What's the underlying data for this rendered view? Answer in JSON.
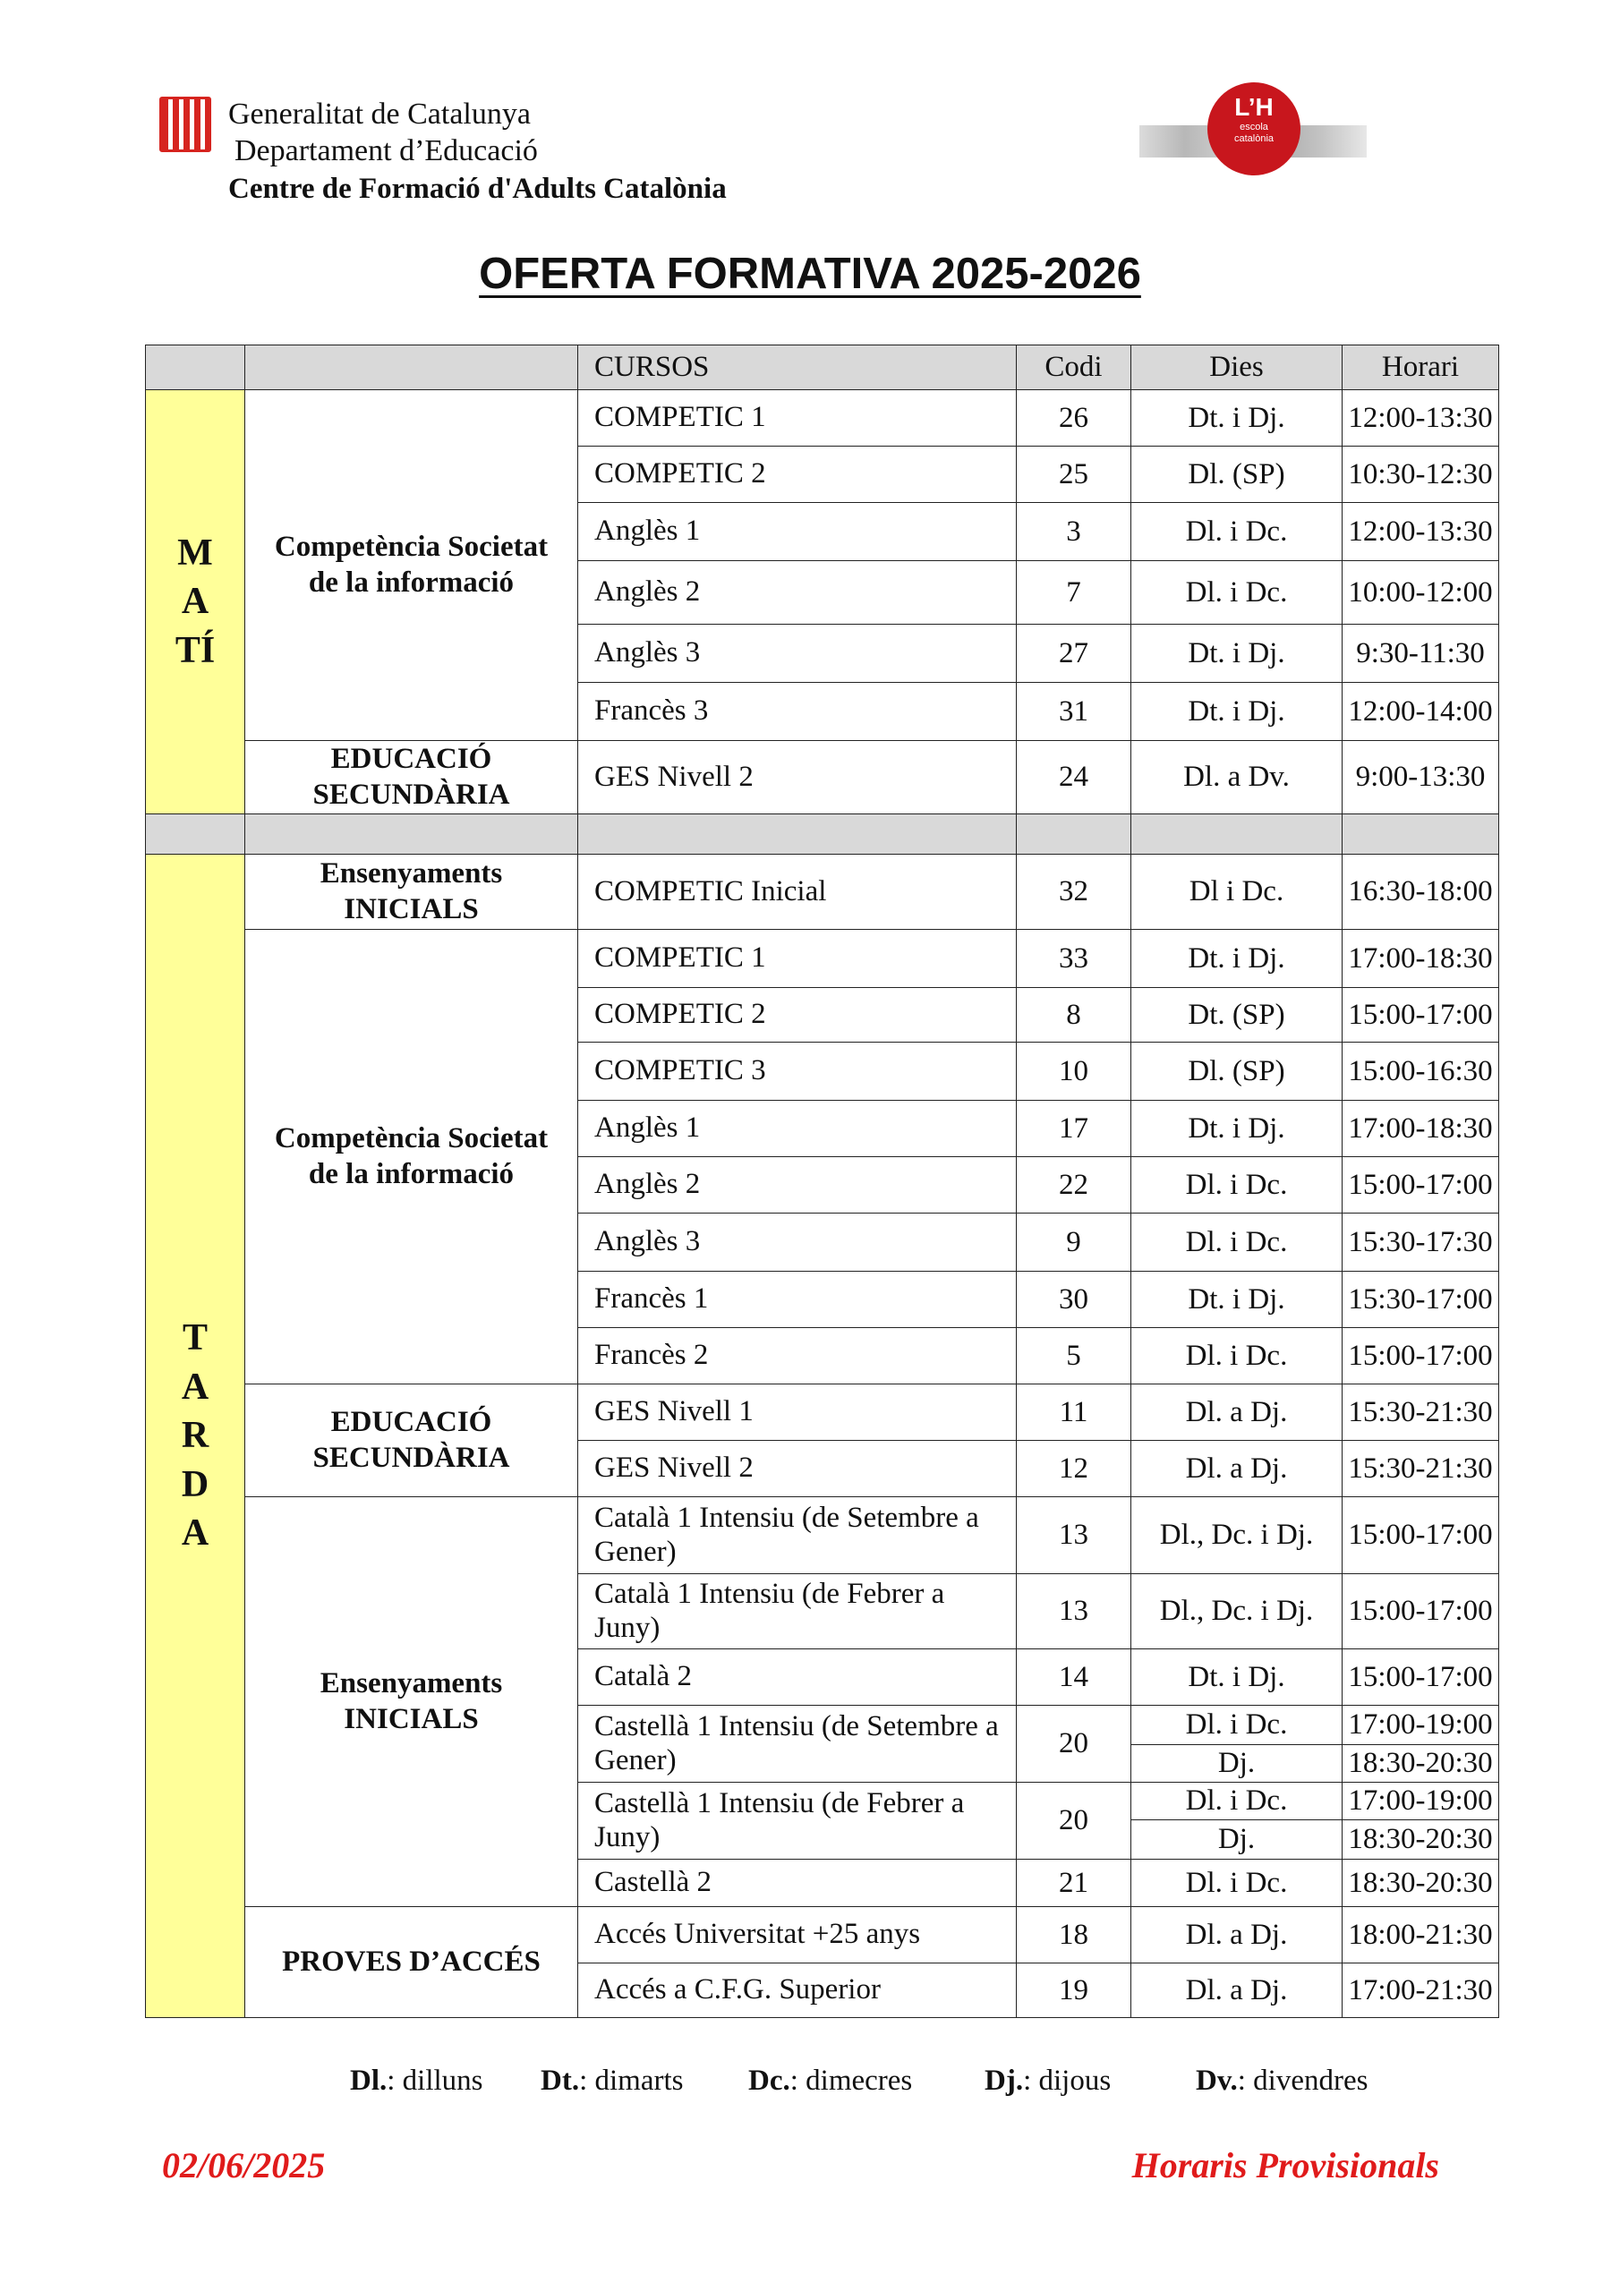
{
  "header": {
    "line1": "Generalitat de Catalunya",
    "line2": "Departament d’Educació",
    "line3": "Centre de Formació d'Adults Catalònia",
    "logo_right": {
      "big": "L’H",
      "small1": "escola",
      "small2": "catalònia"
    }
  },
  "title": "OFERTA FORMATIVA 2025-2026",
  "table": {
    "headers": [
      "",
      "",
      "CURSOS",
      "Codi",
      "Dies",
      "Horari"
    ],
    "sections": [
      {
        "label": "MATÍ",
        "groups": [
          {
            "name": "Competència Societat de la informació",
            "courses": [
              {
                "name": "COMPETIC 1",
                "codi": "26",
                "slots": [
                  {
                    "dies": "Dt. i Dj.",
                    "horari": "12:00-13:30"
                  }
                ]
              },
              {
                "name": "COMPETIC 2",
                "codi": "25",
                "slots": [
                  {
                    "dies": "Dl. (SP)",
                    "horari": "10:30-12:30"
                  }
                ]
              },
              {
                "name": "Anglès 1",
                "codi": "3",
                "slots": [
                  {
                    "dies": "Dl. i Dc.",
                    "horari": "12:00-13:30"
                  }
                ]
              },
              {
                "name": "Anglès 2",
                "codi": "7",
                "slots": [
                  {
                    "dies": "Dl. i Dc.",
                    "horari": "10:00-12:00"
                  }
                ]
              },
              {
                "name": "Anglès 3",
                "codi": "27",
                "slots": [
                  {
                    "dies": "Dt. i Dj.",
                    "horari": "9:30-11:30"
                  }
                ]
              },
              {
                "name": "Francès 3",
                "codi": "31",
                "slots": [
                  {
                    "dies": "Dt. i Dj.",
                    "horari": "12:00-14:00"
                  }
                ]
              }
            ]
          },
          {
            "name": "EDUCACIÓ SECUNDÀRIA",
            "courses": [
              {
                "name": "GES Nivell 2",
                "codi": "24",
                "slots": [
                  {
                    "dies": "Dl. a Dv.",
                    "horari": "9:00-13:30"
                  }
                ]
              }
            ]
          }
        ]
      },
      {
        "label": "TARDA",
        "groups": [
          {
            "name": "Ensenyaments INICIALS",
            "courses": [
              {
                "name": "COMPETIC Inicial",
                "codi": "32",
                "slots": [
                  {
                    "dies": "Dl i Dc.",
                    "horari": "16:30-18:00"
                  }
                ]
              }
            ]
          },
          {
            "name": "Competència Societat de la informació",
            "courses": [
              {
                "name": "COMPETIC 1",
                "codi": "33",
                "slots": [
                  {
                    "dies": "Dt. i Dj.",
                    "horari": "17:00-18:30"
                  }
                ]
              },
              {
                "name": "COMPETIC 2",
                "codi": "8",
                "slots": [
                  {
                    "dies": "Dt. (SP)",
                    "horari": "15:00-17:00"
                  }
                ]
              },
              {
                "name": "COMPETIC 3",
                "codi": "10",
                "slots": [
                  {
                    "dies": "Dl. (SP)",
                    "horari": "15:00-16:30"
                  }
                ]
              },
              {
                "name": "Anglès 1",
                "codi": "17",
                "slots": [
                  {
                    "dies": "Dt. i Dj.",
                    "horari": "17:00-18:30"
                  }
                ]
              },
              {
                "name": "Anglès 2",
                "codi": "22",
                "slots": [
                  {
                    "dies": "Dl. i Dc.",
                    "horari": "15:00-17:00"
                  }
                ]
              },
              {
                "name": "Anglès 3",
                "codi": "9",
                "slots": [
                  {
                    "dies": "Dl. i Dc.",
                    "horari": "15:30-17:30"
                  }
                ]
              },
              {
                "name": "Francès 1",
                "codi": "30",
                "slots": [
                  {
                    "dies": "Dt. i Dj.",
                    "horari": "15:30-17:00"
                  }
                ]
              },
              {
                "name": "Francès 2",
                "codi": "5",
                "slots": [
                  {
                    "dies": "Dl. i Dc.",
                    "horari": "15:00-17:00"
                  }
                ]
              }
            ]
          },
          {
            "name": "EDUCACIÓ SECUNDÀRIA",
            "courses": [
              {
                "name": "GES Nivell  1",
                "codi": "11",
                "slots": [
                  {
                    "dies": "Dl. a Dj.",
                    "horari": "15:30-21:30"
                  }
                ]
              },
              {
                "name": "GES Nivell 2",
                "codi": "12",
                "slots": [
                  {
                    "dies": "Dl. a Dj.",
                    "horari": "15:30-21:30"
                  }
                ]
              }
            ]
          },
          {
            "name": "Ensenyaments INICIALS",
            "courses": [
              {
                "name": "Català 1 Intensiu (de Setembre a Gener)",
                "codi": "13",
                "slots": [
                  {
                    "dies": "Dl., Dc. i Dj.",
                    "horari": "15:00-17:00"
                  }
                ]
              },
              {
                "name": "Català 1 Intensiu (de Febrer a Juny)",
                "codi": "13",
                "slots": [
                  {
                    "dies": "Dl., Dc. i Dj.",
                    "horari": "15:00-17:00"
                  }
                ]
              },
              {
                "name": "Català 2",
                "codi": "14",
                "slots": [
                  {
                    "dies": "Dt. i Dj.",
                    "horari": "15:00-17:00"
                  }
                ]
              },
              {
                "name": "Castellà 1 Intensiu (de Setembre a Gener)",
                "codi": "20",
                "slots": [
                  {
                    "dies": "Dl. i Dc.",
                    "horari": "17:00-19:00"
                  },
                  {
                    "dies": "Dj.",
                    "horari": "18:30-20:30"
                  }
                ]
              },
              {
                "name": "Castellà 1 Intensiu (de Febrer a Juny)",
                "codi": "20",
                "slots": [
                  {
                    "dies": "Dl. i Dc.",
                    "horari": "17:00-19:00"
                  },
                  {
                    "dies": "Dj.",
                    "horari": "18:30-20:30"
                  }
                ]
              },
              {
                "name": "Castellà 2",
                "codi": "21",
                "slots": [
                  {
                    "dies": "Dl. i Dc.",
                    "horari": "18:30-20:30"
                  }
                ]
              }
            ]
          },
          {
            "name": "PROVES D’ACCÉS",
            "courses": [
              {
                "name": "Accés Universitat +25 anys",
                "codi": "18",
                "slots": [
                  {
                    "dies": "Dl. a Dj.",
                    "horari": "18:00-21:30"
                  }
                ]
              },
              {
                "name": "Accés a C.F.G. Superior",
                "codi": "19",
                "slots": [
                  {
                    "dies": "Dl. a Dj.",
                    "horari": "17:00-21:30"
                  }
                ]
              }
            ]
          }
        ]
      }
    ]
  },
  "legend": [
    {
      "abbr": "Dl.",
      "text": ": dilluns"
    },
    {
      "abbr": "Dt.",
      "text": ": dimarts"
    },
    {
      "abbr": "Dc.",
      "text": ": dimecres"
    },
    {
      "abbr": "Dj.",
      "text": ": dijous"
    },
    {
      "abbr": "Dv.",
      "text": ": divendres"
    }
  ],
  "footer": {
    "date": "02/06/2025",
    "status": "Horaris Provisionals"
  },
  "colors": {
    "section_bg": "#ffff99",
    "header_bg": "#d9d9d9",
    "footer_red": "#e01b1b",
    "logo_red": "#c8161d"
  }
}
